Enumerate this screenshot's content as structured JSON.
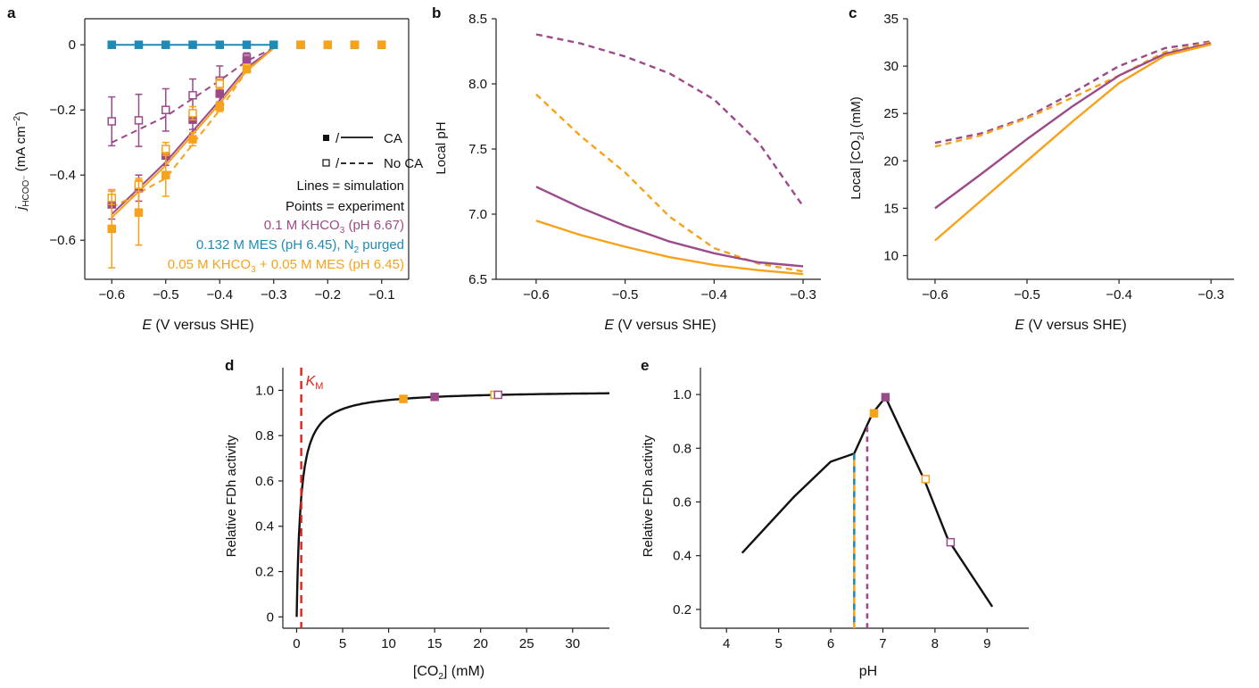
{
  "colors": {
    "purple": "#9b4a8a",
    "blue": "#1f8bb5",
    "orange": "#f7a21b",
    "red": "#e0231c",
    "black": "#111111"
  },
  "chart_data": [
    {
      "panel": "a",
      "type": "line",
      "xlabel": "E (V versus SHE)",
      "ylabel": "j_HCOO− (mA cm−2)",
      "xlim": [
        -0.65,
        -0.05
      ],
      "ylim": [
        -0.72,
        0.08
      ],
      "xticks": [
        -0.6,
        -0.5,
        -0.4,
        -0.3,
        -0.2,
        -0.1
      ],
      "xticklabels": [
        "−0.6",
        "−0.5",
        "−0.4",
        "−0.3",
        "−0.2",
        "−0.1"
      ],
      "yticks": [
        0,
        -0.2,
        -0.4,
        -0.6
      ],
      "yticklabels": [
        "0",
        "−0.2",
        "−0.4",
        "−0.6"
      ],
      "legend": {
        "ca": "CA",
        "noca": "No CA",
        "lines": "Lines = simulation",
        "points": "Points = experiment",
        "s1": "0.1 M KHCO3 (pH 6.67)",
        "s2": "0.132 M MES (pH 6.45), N2 purged",
        "s3": "0.05 M KHCO3 + 0.05 M MES (pH 6.45)"
      },
      "series": [
        {
          "color": "blue",
          "style": "solid",
          "x": [
            -0.6,
            -0.55,
            -0.5,
            -0.45,
            -0.4,
            -0.35,
            -0.3
          ],
          "y": [
            0,
            0,
            0,
            0,
            0,
            0,
            0
          ]
        },
        {
          "color": "purple",
          "style": "solid",
          "x": [
            -0.6,
            -0.5,
            -0.4,
            -0.35,
            -0.3
          ],
          "y": [
            -0.52,
            -0.36,
            -0.17,
            -0.07,
            -0.01
          ]
        },
        {
          "color": "purple",
          "style": "dashed",
          "x": [
            -0.6,
            -0.5,
            -0.4,
            -0.35,
            -0.3
          ],
          "y": [
            -0.3,
            -0.22,
            -0.11,
            -0.05,
            -0.01
          ]
        },
        {
          "color": "orange",
          "style": "solid",
          "x": [
            -0.6,
            -0.5,
            -0.4,
            -0.35,
            -0.3
          ],
          "y": [
            -0.53,
            -0.37,
            -0.18,
            -0.08,
            -0.01
          ]
        },
        {
          "color": "orange",
          "style": "dashed",
          "x": [
            -0.6,
            -0.5,
            -0.4,
            -0.35,
            -0.3
          ],
          "y": [
            -0.5,
            -0.41,
            -0.2,
            -0.08,
            -0.01
          ]
        }
      ],
      "points": [
        {
          "color": "blue",
          "filled": true,
          "x": [
            -0.6,
            -0.55,
            -0.5,
            -0.45,
            -0.4,
            -0.35,
            -0.3,
            -0.25,
            -0.2,
            -0.15,
            -0.1
          ],
          "y": [
            0,
            0,
            0,
            0,
            0,
            0,
            0,
            0,
            0,
            0,
            0
          ],
          "err": [
            0,
            0,
            0,
            0,
            0,
            0,
            0,
            0,
            0,
            0,
            0
          ]
        },
        {
          "color": "orange",
          "filled": true,
          "x": [
            -0.25,
            -0.2,
            -0.15,
            -0.1
          ],
          "y": [
            0,
            0,
            0,
            0
          ],
          "err": [
            0,
            0,
            0,
            0
          ]
        },
        {
          "color": "purple",
          "filled": false,
          "x": [
            -0.6,
            -0.55,
            -0.5,
            -0.45,
            -0.4,
            -0.35
          ],
          "y": [
            -0.235,
            -0.232,
            -0.2,
            -0.155,
            -0.11,
            -0.04
          ],
          "err": [
            0.075,
            0.08,
            0.065,
            0.05,
            0.045,
            0.015
          ]
        },
        {
          "color": "purple",
          "filled": true,
          "x": [
            -0.6,
            -0.55,
            -0.5,
            -0.45,
            -0.4,
            -0.35
          ],
          "y": [
            -0.49,
            -0.44,
            -0.34,
            -0.23,
            -0.15,
            -0.05
          ],
          "err": [
            0.045,
            0.04,
            0.03,
            0.03,
            0.025,
            0.015
          ]
        },
        {
          "color": "orange",
          "filled": false,
          "x": [
            -0.6,
            -0.55,
            -0.5,
            -0.45,
            -0.4,
            -0.35
          ],
          "y": [
            -0.47,
            -0.43,
            -0.32,
            -0.21,
            -0.12,
            -0.07
          ],
          "err": [
            0.02,
            0.02,
            0.02,
            0.02,
            0.015,
            0.01
          ]
        },
        {
          "color": "orange",
          "filled": true,
          "x": [
            -0.6,
            -0.55,
            -0.5,
            -0.45,
            -0.4,
            -0.35
          ],
          "y": [
            -0.565,
            -0.515,
            -0.4,
            -0.29,
            -0.19,
            -0.075
          ],
          "err": [
            0.12,
            0.1,
            0.065,
            0.02,
            0.015,
            0.01
          ]
        }
      ]
    },
    {
      "panel": "b",
      "type": "line",
      "xlabel": "E (V versus SHE)",
      "ylabel": "Local pH",
      "xlim": [
        -0.645,
        -0.28
      ],
      "ylim": [
        6.5,
        8.5
      ],
      "xticks": [
        -0.6,
        -0.5,
        -0.4,
        -0.3
      ],
      "xticklabels": [
        "−0.6",
        "−0.5",
        "−0.4",
        "−0.3"
      ],
      "yticks": [
        6.5,
        7.0,
        7.5,
        8.0,
        8.5
      ],
      "yticklabels": [
        "6.5",
        "7.0",
        "7.5",
        "8.0",
        "8.5"
      ],
      "series": [
        {
          "color": "purple",
          "style": "dashed",
          "x": [
            -0.6,
            -0.55,
            -0.5,
            -0.45,
            -0.4,
            -0.35,
            -0.3
          ],
          "y": [
            8.38,
            8.31,
            8.21,
            8.08,
            7.88,
            7.55,
            7.06
          ]
        },
        {
          "color": "orange",
          "style": "dashed",
          "x": [
            -0.6,
            -0.55,
            -0.5,
            -0.45,
            -0.4,
            -0.35,
            -0.3
          ],
          "y": [
            7.92,
            7.6,
            7.32,
            6.98,
            6.74,
            6.62,
            6.56
          ]
        },
        {
          "color": "purple",
          "style": "solid",
          "x": [
            -0.6,
            -0.55,
            -0.5,
            -0.45,
            -0.4,
            -0.35,
            -0.3
          ],
          "y": [
            7.21,
            7.05,
            6.91,
            6.79,
            6.7,
            6.63,
            6.6
          ]
        },
        {
          "color": "orange",
          "style": "solid",
          "x": [
            -0.6,
            -0.55,
            -0.5,
            -0.45,
            -0.4,
            -0.35,
            -0.3
          ],
          "y": [
            6.95,
            6.84,
            6.75,
            6.67,
            6.61,
            6.57,
            6.54
          ]
        }
      ]
    },
    {
      "panel": "c",
      "type": "line",
      "xlabel": "E (V versus SHE)",
      "ylabel": "Local [CO2] (mM)",
      "xlim": [
        -0.63,
        -0.275
      ],
      "ylim": [
        7.5,
        35
      ],
      "xticks": [
        -0.6,
        -0.5,
        -0.4,
        -0.3
      ],
      "xticklabels": [
        "−0.6",
        "−0.5",
        "−0.4",
        "−0.3"
      ],
      "yticks": [
        10,
        15,
        20,
        25,
        30,
        35
      ],
      "yticklabels": [
        "10",
        "15",
        "20",
        "25",
        "30",
        "35"
      ],
      "series": [
        {
          "color": "purple",
          "style": "dashed",
          "x": [
            -0.6,
            -0.55,
            -0.5,
            -0.45,
            -0.4,
            -0.35,
            -0.3
          ],
          "y": [
            21.9,
            22.9,
            24.6,
            27.2,
            30.0,
            31.9,
            32.6
          ]
        },
        {
          "color": "orange",
          "style": "dashed",
          "x": [
            -0.6,
            -0.55,
            -0.5,
            -0.45,
            -0.4,
            -0.35,
            -0.3
          ],
          "y": [
            21.5,
            22.7,
            24.5,
            26.7,
            29.0,
            31.5,
            32.5
          ]
        },
        {
          "color": "purple",
          "style": "solid",
          "x": [
            -0.6,
            -0.55,
            -0.5,
            -0.45,
            -0.4,
            -0.35,
            -0.3
          ],
          "y": [
            15.0,
            18.6,
            22.3,
            25.8,
            29.0,
            31.3,
            32.4
          ]
        },
        {
          "color": "orange",
          "style": "solid",
          "x": [
            -0.6,
            -0.55,
            -0.5,
            -0.45,
            -0.4,
            -0.35,
            -0.3
          ],
          "y": [
            11.6,
            15.8,
            20.0,
            24.2,
            28.2,
            31.1,
            32.3
          ]
        }
      ]
    },
    {
      "panel": "d",
      "type": "line",
      "xlabel": "[CO2] (mM)",
      "ylabel": "Relative FDh activity",
      "xlim": [
        -1.5,
        34
      ],
      "ylim": [
        -0.05,
        1.1
      ],
      "xticks": [
        0,
        5,
        10,
        15,
        20,
        25,
        30
      ],
      "xticklabels": [
        "0",
        "5",
        "10",
        "15",
        "20",
        "25",
        "30"
      ],
      "yticks": [
        0,
        0.2,
        0.4,
        0.6,
        0.8,
        1.0
      ],
      "yticklabels": [
        "0",
        "0.2",
        "0.4",
        "0.6",
        "0.8",
        "1.0"
      ],
      "km": {
        "x": 0.5,
        "label": "KM"
      },
      "curve": {
        "color": "black",
        "km": 0.45,
        "xmax": 34
      },
      "markers": [
        {
          "x": 11.6,
          "y": 0.962,
          "color": "orange",
          "filled": true
        },
        {
          "x": 15.0,
          "y": 0.971,
          "color": "purple",
          "filled": true
        },
        {
          "x": 21.5,
          "y": 0.98,
          "color": "orange",
          "filled": false
        },
        {
          "x": 21.9,
          "y": 0.98,
          "color": "purple",
          "filled": false
        }
      ]
    },
    {
      "panel": "e",
      "type": "line",
      "xlabel": "pH",
      "ylabel": "Relative FDh activity",
      "xlim": [
        3.5,
        9.8
      ],
      "ylim": [
        0.13,
        1.1
      ],
      "xticks": [
        4,
        5,
        6,
        7,
        8,
        9
      ],
      "xticklabels": [
        "4",
        "5",
        "6",
        "7",
        "8",
        "9"
      ],
      "yticks": [
        0.2,
        0.4,
        0.6,
        0.8,
        1.0
      ],
      "yticklabels": [
        "0.2",
        "0.4",
        "0.6",
        "0.8",
        "1.0"
      ],
      "series": [
        {
          "color": "black",
          "style": "solid",
          "x": [
            4.3,
            5.3,
            6.0,
            6.45,
            6.8,
            7.05,
            7.8,
            8.25,
            9.1
          ],
          "y": [
            0.41,
            0.62,
            0.75,
            0.78,
            0.93,
            0.99,
            0.68,
            0.46,
            0.21
          ]
        }
      ],
      "vlines": [
        {
          "x": 6.45,
          "y": 0.78,
          "style": "blue-orange"
        },
        {
          "x": 6.7,
          "y": 0.88,
          "style": "purple"
        }
      ],
      "markers": [
        {
          "x": 6.83,
          "y": 0.93,
          "color": "orange",
          "filled": true
        },
        {
          "x": 7.05,
          "y": 0.99,
          "color": "purple",
          "filled": true
        },
        {
          "x": 7.82,
          "y": 0.685,
          "color": "orange",
          "filled": false
        },
        {
          "x": 8.3,
          "y": 0.45,
          "color": "purple",
          "filled": false
        }
      ]
    }
  ]
}
